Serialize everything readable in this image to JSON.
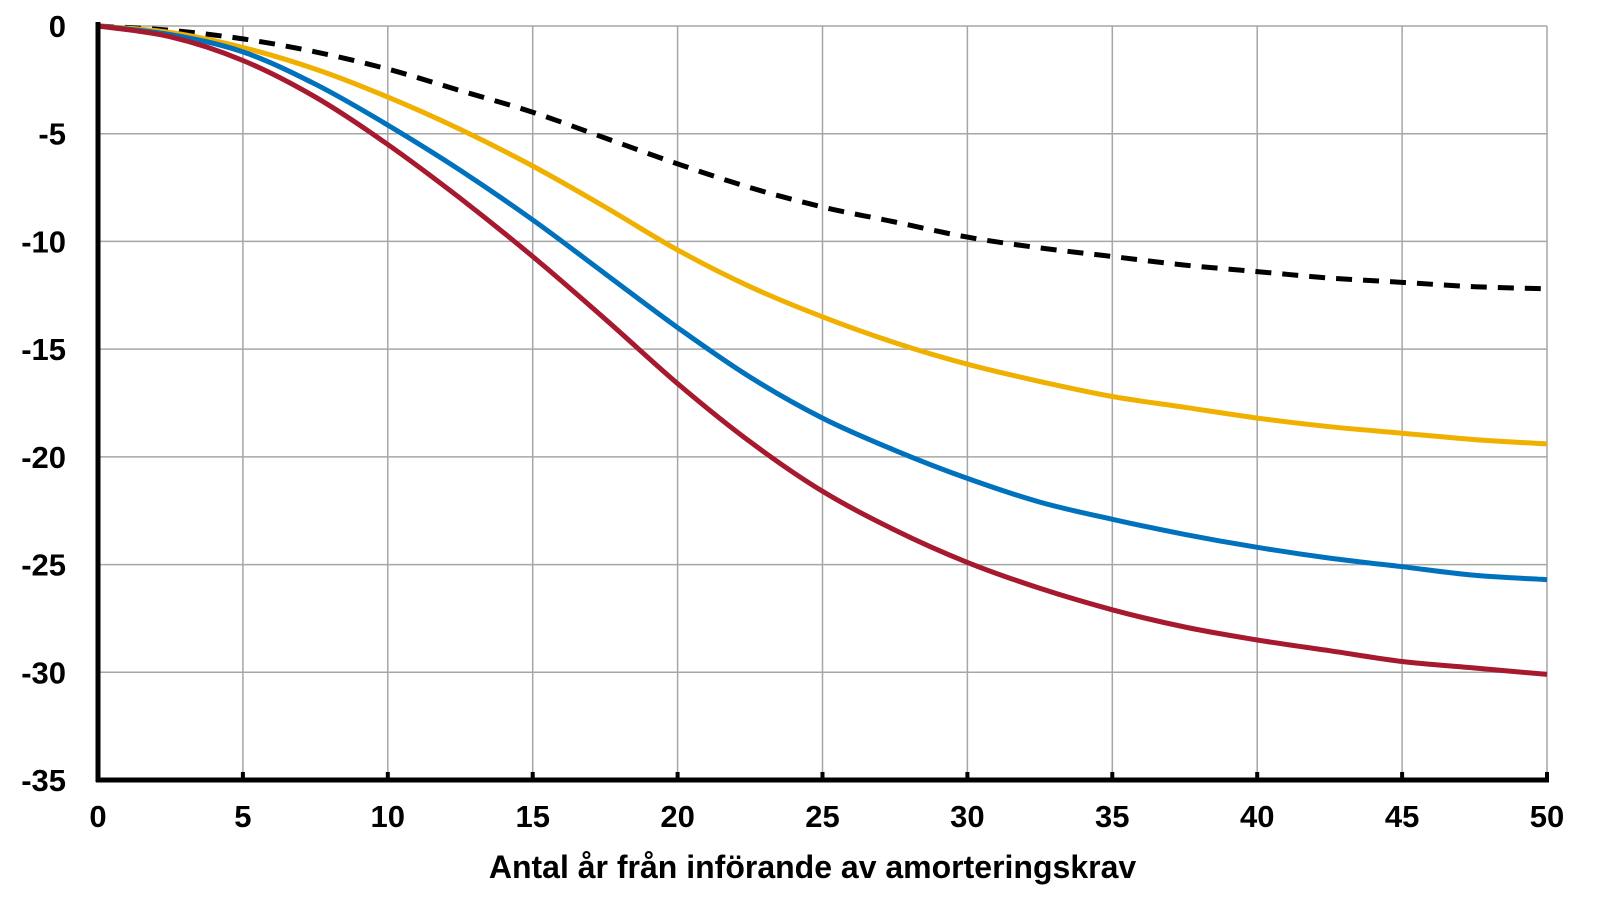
{
  "chart_data": {
    "type": "line",
    "title": "",
    "xlabel": "Antal år från införande av amorteringskrav",
    "ylabel": "",
    "xlim": [
      0,
      50
    ],
    "ylim": [
      -35,
      0
    ],
    "x_ticks": [
      0,
      5,
      10,
      15,
      20,
      25,
      30,
      35,
      40,
      45,
      50
    ],
    "y_ticks": [
      0,
      -5,
      -10,
      -15,
      -20,
      -25,
      -30,
      -35
    ],
    "x_tick_labels": [
      "0",
      "5",
      "10",
      "15",
      "20",
      "25",
      "30",
      "35",
      "40",
      "45",
      "50"
    ],
    "y_tick_labels": [
      "0",
      "-5",
      "-10",
      "-15",
      "-20",
      "-25",
      "-30",
      "-35"
    ],
    "grid": true,
    "legend": "none",
    "x": [
      0,
      2.5,
      5,
      7.5,
      10,
      12.5,
      15,
      17.5,
      20,
      22.5,
      25,
      27.5,
      30,
      32.5,
      35,
      37.5,
      40,
      42.5,
      45,
      47.5,
      50
    ],
    "series": [
      {
        "color": "#000000",
        "style": "dashed",
        "values": [
          0,
          -0.2,
          -0.6,
          -1.2,
          -2.0,
          -3.0,
          -4.0,
          -5.2,
          -6.4,
          -7.5,
          -8.4,
          -9.1,
          -9.8,
          -10.3,
          -10.7,
          -11.1,
          -11.4,
          -11.7,
          -11.9,
          -12.1,
          -12.2
        ]
      },
      {
        "color": "#f0b000",
        "style": "solid",
        "values": [
          0,
          -0.3,
          -1.0,
          -2.0,
          -3.3,
          -4.8,
          -6.5,
          -8.4,
          -10.4,
          -12.1,
          -13.5,
          -14.7,
          -15.7,
          -16.5,
          -17.2,
          -17.7,
          -18.2,
          -18.6,
          -18.9,
          -19.2,
          -19.4
        ]
      },
      {
        "color": "#0072bd",
        "style": "solid",
        "values": [
          0,
          -0.4,
          -1.2,
          -2.7,
          -4.6,
          -6.7,
          -9.0,
          -11.5,
          -14.0,
          -16.3,
          -18.2,
          -19.7,
          -21.0,
          -22.1,
          -22.9,
          -23.6,
          -24.2,
          -24.7,
          -25.1,
          -25.5,
          -25.7
        ]
      },
      {
        "color": "#a6192e",
        "style": "solid",
        "values": [
          0,
          -0.5,
          -1.6,
          -3.3,
          -5.5,
          -8.0,
          -10.7,
          -13.6,
          -16.6,
          -19.3,
          -21.6,
          -23.4,
          -24.9,
          -26.1,
          -27.1,
          -27.9,
          -28.5,
          -29.0,
          -29.5,
          -29.8,
          -30.1
        ]
      }
    ]
  }
}
